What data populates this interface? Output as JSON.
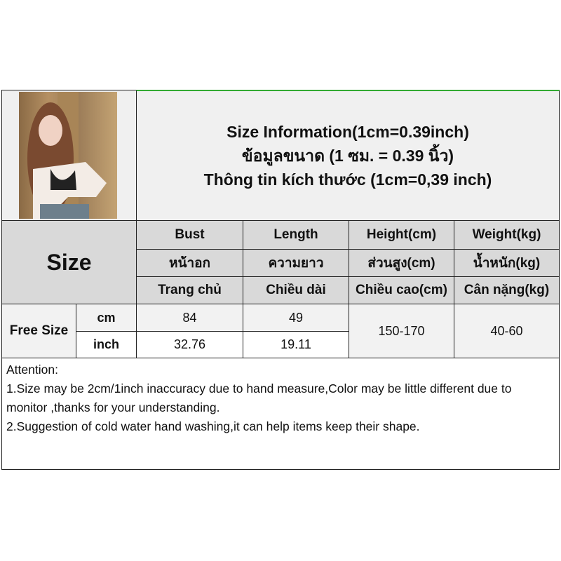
{
  "title": {
    "line1": "Size Information(1cm=0.39inch)",
    "line2": "ข้อมูลขนาด (1 ซม. = 0.39 นิ้ว)",
    "line3": "Thông tin kích thước (1cm=0,39 inch)"
  },
  "size_label": "Size",
  "headers": [
    {
      "en": "Bust",
      "th": "หน้าอก",
      "vi": "Trang chủ"
    },
    {
      "en": "Length",
      "th": "ความยาว",
      "vi": "Chiều dài"
    },
    {
      "en": "Height(cm)",
      "th": "ส่วนสูง(cm)",
      "vi": "Chiều cao(cm)"
    },
    {
      "en": "Weight(kg)",
      "th": "น้ำหนัก(kg)",
      "vi": "Cân nặng(kg)"
    }
  ],
  "rows": {
    "size_name": "Free Size",
    "cm": {
      "unit": "cm",
      "bust": "84",
      "length": "49"
    },
    "inch": {
      "unit": "inch",
      "bust": "32.76",
      "length": "19.11"
    },
    "height": "150-170",
    "weight": "40-60"
  },
  "attention": {
    "heading": "Attention:",
    "note1": "1.Size may be 2cm/1inch inaccuracy due to hand measure,Color may be little different due to monitor ,thanks for your understanding.",
    "note2": "2.Suggestion of cold water hand washing,it can help items keep their shape."
  }
}
